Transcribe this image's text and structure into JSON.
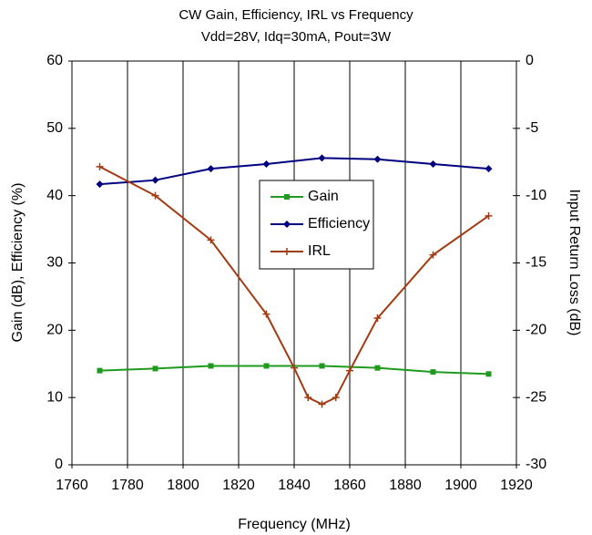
{
  "chart_data": {
    "type": "line",
    "title": "CW Gain, Efficiency, IRL vs Frequency",
    "subtitle": "Vdd=28V, Idq=30mA, Pout=3W",
    "x_label": "Frequency (MHz)",
    "y_label": "Gain (dB), Efficiency (%)",
    "y2_label": "Input Return Loss (dB)",
    "x": [
      1770,
      1790,
      1810,
      1830,
      1850,
      1870,
      1890,
      1910
    ],
    "series": [
      {
        "name": "Gain",
        "color": "#1f9a1f",
        "marker": "square",
        "values": [
          14,
          14.3,
          14.7,
          14.7,
          14.7,
          14.4,
          13.8,
          13.5
        ]
      },
      {
        "name": "Efficiency",
        "color": "#000080",
        "marker": "diamond",
        "values": [
          41.7,
          42.3,
          44,
          44.7,
          45.6,
          45.4,
          44.7,
          44
        ]
      },
      {
        "name": "IRL",
        "color": "#a33a12",
        "marker": "plus",
        "axis": "y2",
        "x": [
          1770,
          1790,
          1810,
          1830,
          1840,
          1845,
          1850,
          1855,
          1860,
          1870,
          1890,
          1910
        ],
        "values": [
          -7.85,
          -10,
          -13.3,
          -18.8,
          -22.8,
          -25,
          -25.5,
          -25,
          -23,
          -19.1,
          -14.4,
          -11.5
        ]
      }
    ],
    "xlim": [
      1760,
      1920
    ],
    "xticks": [
      1760,
      1780,
      1800,
      1820,
      1840,
      1860,
      1880,
      1900,
      1920
    ],
    "ylim": [
      0,
      60
    ],
    "yticks": [
      0,
      10,
      20,
      30,
      40,
      50,
      60
    ],
    "y2lim": [
      -30,
      0
    ],
    "y2ticks": [
      -30,
      -25,
      -20,
      -15,
      -10,
      -5,
      0
    ],
    "grid": "x"
  }
}
